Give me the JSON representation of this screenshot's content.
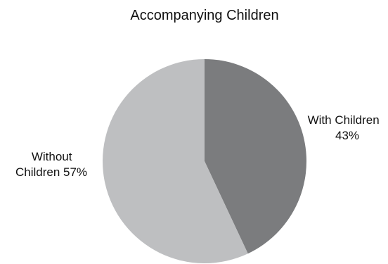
{
  "chart_data": {
    "type": "pie",
    "title": "Accompanying Children",
    "start": "12 o'clock, clockwise",
    "slices": [
      {
        "name": "With Children",
        "value": 43,
        "value_label": "43%",
        "color": "#7b7c7e"
      },
      {
        "name": "Without Children",
        "value": 57,
        "value_label": "57%",
        "color": "#bebfc1"
      }
    ]
  }
}
